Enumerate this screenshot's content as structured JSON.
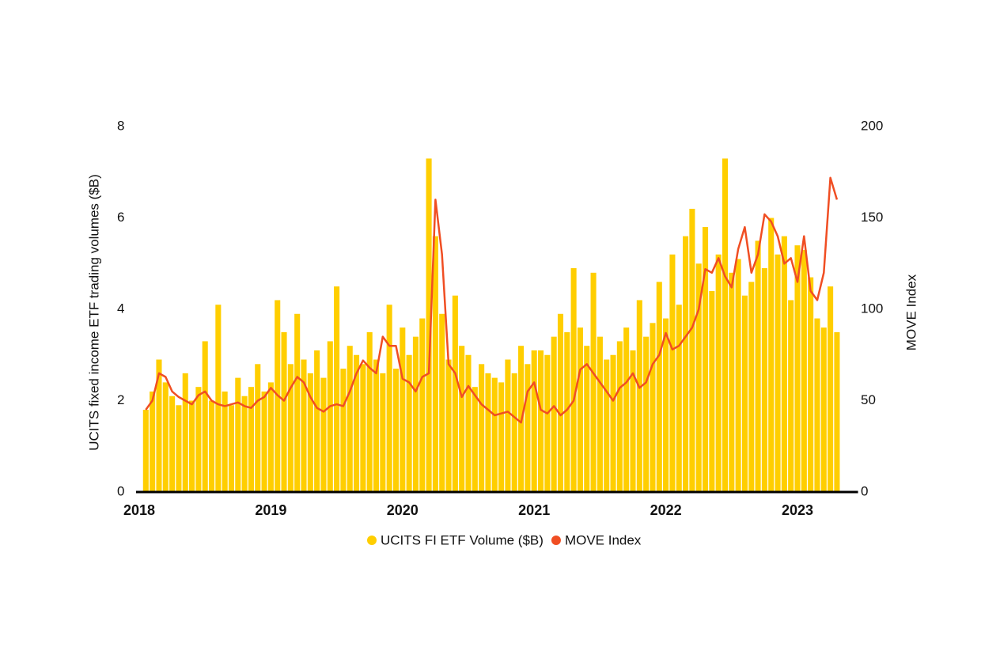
{
  "chart_data": {
    "type": "bar-line",
    "x": [
      2018.05,
      2018.1,
      2018.15,
      2018.2,
      2018.25,
      2018.3,
      2018.35,
      2018.4,
      2018.45,
      2018.5,
      2018.55,
      2018.6,
      2018.65,
      2018.7,
      2018.75,
      2018.8,
      2018.85,
      2018.9,
      2018.95,
      2019.0,
      2019.05,
      2019.1,
      2019.15,
      2019.2,
      2019.25,
      2019.3,
      2019.35,
      2019.4,
      2019.45,
      2019.5,
      2019.55,
      2019.6,
      2019.65,
      2019.7,
      2019.75,
      2019.8,
      2019.85,
      2019.9,
      2019.95,
      2020.0,
      2020.05,
      2020.1,
      2020.15,
      2020.2,
      2020.25,
      2020.3,
      2020.35,
      2020.4,
      2020.45,
      2020.5,
      2020.55,
      2020.6,
      2020.65,
      2020.7,
      2020.75,
      2020.8,
      2020.85,
      2020.9,
      2020.95,
      2021.0,
      2021.05,
      2021.1,
      2021.15,
      2021.2,
      2021.25,
      2021.3,
      2021.35,
      2021.4,
      2021.45,
      2021.5,
      2021.55,
      2021.6,
      2021.65,
      2021.7,
      2021.75,
      2021.8,
      2021.85,
      2021.9,
      2021.95,
      2022.0,
      2022.05,
      2022.1,
      2022.15,
      2022.2,
      2022.25,
      2022.3,
      2022.35,
      2022.4,
      2022.45,
      2022.5,
      2022.55,
      2022.6,
      2022.65,
      2022.7,
      2022.75,
      2022.8,
      2022.85,
      2022.9,
      2022.95,
      2023.0,
      2023.05,
      2023.1,
      2023.15,
      2023.2,
      2023.25,
      2023.3
    ],
    "xlim": [
      2017.96,
      2023.46
    ],
    "xticks": [
      2018,
      2019,
      2020,
      2021,
      2022,
      2023
    ],
    "ylabel": "UCITS fixed income ETF trading volumes ($B)",
    "y2label": "MOVE Index",
    "ylim": [
      0,
      8
    ],
    "yticks": [
      0,
      2,
      4,
      6,
      8
    ],
    "y2lim": [
      0,
      200
    ],
    "y2ticks": [
      0,
      50,
      100,
      150,
      200
    ],
    "series": [
      {
        "name": "UCITS FI ETF Volume ($B)",
        "type": "bar",
        "color": "#FFCE00",
        "values": [
          1.8,
          2.2,
          2.9,
          2.4,
          2.1,
          1.9,
          2.6,
          2.0,
          2.3,
          3.3,
          2.0,
          4.1,
          2.2,
          1.9,
          2.5,
          2.1,
          2.3,
          2.8,
          2.2,
          2.4,
          4.2,
          3.5,
          2.8,
          3.9,
          2.9,
          2.6,
          3.1,
          2.5,
          3.3,
          4.5,
          2.7,
          3.2,
          3.0,
          2.8,
          3.5,
          2.9,
          2.6,
          4.1,
          2.7,
          3.6,
          3.0,
          3.4,
          3.8,
          7.3,
          5.6,
          3.9,
          2.9,
          4.3,
          3.2,
          3.0,
          2.3,
          2.8,
          2.6,
          2.5,
          2.4,
          2.9,
          2.6,
          3.2,
          2.8,
          3.1,
          3.1,
          3.0,
          3.4,
          3.9,
          3.5,
          4.9,
          3.6,
          3.2,
          4.8,
          3.4,
          2.9,
          3.0,
          3.3,
          3.6,
          3.1,
          4.2,
          3.4,
          3.7,
          4.6,
          3.8,
          5.2,
          4.1,
          5.6,
          6.2,
          5.0,
          5.8,
          4.4,
          5.2,
          7.3,
          4.8,
          5.1,
          4.3,
          4.6,
          5.5,
          4.9,
          6.0,
          5.2,
          5.6,
          4.2,
          5.4,
          5.3,
          4.7,
          3.8,
          3.6,
          4.5,
          3.5
        ]
      },
      {
        "name": "MOVE Index",
        "type": "line",
        "axis": "y2",
        "color": "#F04E23",
        "values": [
          45,
          50,
          65,
          63,
          55,
          52,
          50,
          48,
          53,
          55,
          50,
          48,
          47,
          48,
          49,
          47,
          46,
          50,
          52,
          57,
          53,
          50,
          57,
          63,
          60,
          52,
          46,
          44,
          47,
          48,
          47,
          55,
          65,
          72,
          68,
          65,
          85,
          80,
          80,
          62,
          60,
          55,
          63,
          65,
          160,
          130,
          70,
          65,
          52,
          58,
          53,
          48,
          45,
          42,
          43,
          44,
          41,
          38,
          55,
          60,
          45,
          43,
          47,
          42,
          45,
          50,
          67,
          70,
          65,
          60,
          55,
          50,
          57,
          60,
          65,
          57,
          60,
          70,
          75,
          87,
          78,
          80,
          85,
          90,
          100,
          122,
          120,
          128,
          118,
          112,
          133,
          145,
          120,
          130,
          152,
          148,
          140,
          125,
          128,
          115,
          140,
          110,
          105,
          120,
          172,
          160
        ]
      }
    ]
  }
}
